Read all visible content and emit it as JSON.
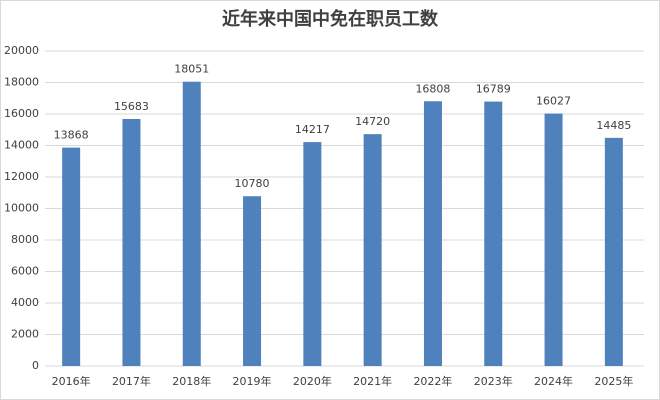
{
  "chart_data": {
    "type": "bar",
    "title": "近年来中国中免在职员工数",
    "categories": [
      "2016年",
      "2017年",
      "2018年",
      "2019年",
      "2020年",
      "2021年",
      "2022年",
      "2023年",
      "2024年",
      "2025年"
    ],
    "values": [
      13868,
      15683,
      18051,
      10780,
      14217,
      14720,
      16808,
      16789,
      16027,
      14485
    ],
    "color": "#4f81bd",
    "ylim": [
      0,
      20000
    ],
    "yticks": [
      0,
      2000,
      4000,
      6000,
      8000,
      10000,
      12000,
      14000,
      16000,
      18000,
      20000
    ],
    "grid": true
  }
}
